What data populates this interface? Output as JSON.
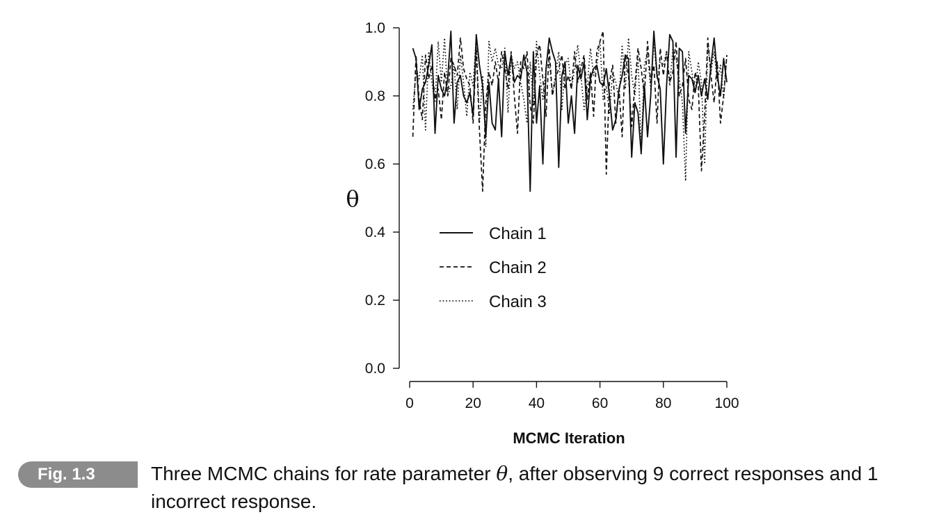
{
  "chart_data": {
    "type": "line",
    "title": "",
    "xlabel": "MCMC Iteration",
    "ylabel": "θ",
    "xlim": [
      0,
      100
    ],
    "ylim": [
      0.0,
      1.0
    ],
    "x_ticks": [
      "0",
      "20",
      "40",
      "60",
      "80",
      "100"
    ],
    "y_ticks": [
      "0.0",
      "0.2",
      "0.4",
      "0.6",
      "0.8",
      "1.0"
    ],
    "grid": false,
    "legend_position": "center",
    "x": [
      1,
      2,
      3,
      4,
      5,
      6,
      7,
      8,
      9,
      10,
      11,
      12,
      13,
      14,
      15,
      16,
      17,
      18,
      19,
      20,
      21,
      22,
      23,
      24,
      25,
      26,
      27,
      28,
      29,
      30,
      31,
      32,
      33,
      34,
      35,
      36,
      37,
      38,
      39,
      40,
      41,
      42,
      43,
      44,
      45,
      46,
      47,
      48,
      49,
      50,
      51,
      52,
      53,
      54,
      55,
      56,
      57,
      58,
      59,
      60,
      61,
      62,
      63,
      64,
      65,
      66,
      67,
      68,
      69,
      70,
      71,
      72,
      73,
      74,
      75,
      76,
      77,
      78,
      79,
      80,
      81,
      82,
      83,
      84,
      85,
      86,
      87,
      88,
      89,
      90,
      91,
      92,
      93,
      94,
      95,
      96,
      97,
      98,
      99,
      100
    ],
    "series": [
      {
        "name": "Chain 1",
        "style": "solid",
        "values": [
          0.94,
          0.91,
          0.76,
          0.82,
          0.84,
          0.89,
          0.95,
          0.69,
          0.86,
          0.82,
          0.8,
          0.85,
          0.99,
          0.72,
          0.84,
          0.86,
          0.8,
          0.78,
          0.81,
          0.74,
          0.98,
          0.89,
          0.83,
          0.68,
          0.84,
          0.72,
          0.7,
          0.85,
          0.68,
          0.93,
          0.86,
          0.92,
          0.84,
          0.86,
          0.85,
          0.92,
          0.87,
          0.52,
          0.93,
          0.72,
          0.83,
          0.6,
          0.88,
          0.97,
          0.93,
          0.9,
          0.59,
          0.86,
          0.9,
          0.72,
          0.8,
          0.69,
          0.89,
          0.85,
          0.9,
          0.73,
          0.85,
          0.88,
          0.89,
          0.84,
          0.83,
          0.88,
          0.8,
          0.7,
          0.73,
          0.82,
          0.86,
          0.92,
          0.91,
          0.62,
          0.78,
          0.75,
          0.63,
          0.83,
          0.68,
          0.8,
          0.99,
          0.86,
          0.82,
          0.6,
          0.83,
          0.98,
          0.96,
          0.62,
          0.94,
          0.93,
          0.69,
          0.86,
          0.85,
          0.81,
          0.86,
          0.8,
          0.85,
          0.79,
          0.89,
          0.97,
          0.86,
          0.8,
          0.91,
          0.84
        ]
      },
      {
        "name": "Chain 2",
        "style": "dashed",
        "values": [
          0.68,
          0.92,
          0.79,
          0.73,
          0.92,
          0.85,
          0.89,
          0.79,
          0.82,
          0.73,
          0.87,
          0.8,
          0.91,
          0.89,
          0.86,
          0.97,
          0.88,
          0.85,
          0.83,
          0.72,
          0.94,
          0.7,
          0.52,
          0.78,
          0.87,
          0.83,
          0.9,
          0.84,
          0.93,
          0.88,
          0.82,
          0.93,
          0.8,
          0.69,
          0.9,
          0.88,
          0.93,
          0.77,
          0.72,
          0.92,
          0.95,
          0.85,
          0.74,
          0.94,
          0.8,
          0.85,
          0.88,
          0.92,
          0.82,
          0.86,
          0.82,
          0.93,
          0.84,
          0.88,
          0.92,
          0.79,
          0.87,
          0.74,
          0.93,
          0.96,
          0.99,
          0.57,
          0.84,
          0.89,
          0.72,
          0.82,
          0.68,
          0.92,
          0.86,
          0.71,
          0.83,
          0.94,
          0.88,
          0.8,
          0.96,
          0.84,
          0.89,
          0.72,
          0.94,
          0.86,
          0.93,
          0.84,
          0.87,
          0.96,
          0.8,
          0.83,
          0.91,
          0.79,
          0.76,
          0.87,
          0.83,
          0.58,
          0.74,
          0.97,
          0.86,
          0.78,
          0.9,
          0.72,
          0.8,
          0.92
        ]
      },
      {
        "name": "Chain 3",
        "style": "dotted",
        "values": [
          0.76,
          0.87,
          0.85,
          0.92,
          0.7,
          0.93,
          0.84,
          0.78,
          0.96,
          0.84,
          0.97,
          0.8,
          0.83,
          0.89,
          0.76,
          0.92,
          0.84,
          0.74,
          0.87,
          0.83,
          0.97,
          0.72,
          0.86,
          0.65,
          0.96,
          0.9,
          0.94,
          0.89,
          0.88,
          0.94,
          0.75,
          0.92,
          0.88,
          0.9,
          0.84,
          0.79,
          0.72,
          0.9,
          0.77,
          0.96,
          0.86,
          0.79,
          0.88,
          0.9,
          0.81,
          0.86,
          0.93,
          0.76,
          0.89,
          0.91,
          0.82,
          0.88,
          0.95,
          0.86,
          0.76,
          0.83,
          0.94,
          0.86,
          0.89,
          0.96,
          0.79,
          0.83,
          0.75,
          0.87,
          0.84,
          0.79,
          0.95,
          0.82,
          0.97,
          0.86,
          0.8,
          0.92,
          0.64,
          0.89,
          0.93,
          0.82,
          0.96,
          0.85,
          0.9,
          0.89,
          0.93,
          0.83,
          0.94,
          0.91,
          0.85,
          0.78,
          0.55,
          0.93,
          0.87,
          0.81,
          0.9,
          0.84,
          0.6,
          0.95,
          0.87,
          0.93,
          0.84,
          0.89,
          0.79,
          0.92
        ]
      }
    ]
  },
  "caption": {
    "badge": "Fig. 1.3",
    "text_before": "Three MCMC chains for rate parameter ",
    "symbol": "θ",
    "text_after": ", after observing 9 correct responses and 1 incorrect response."
  }
}
